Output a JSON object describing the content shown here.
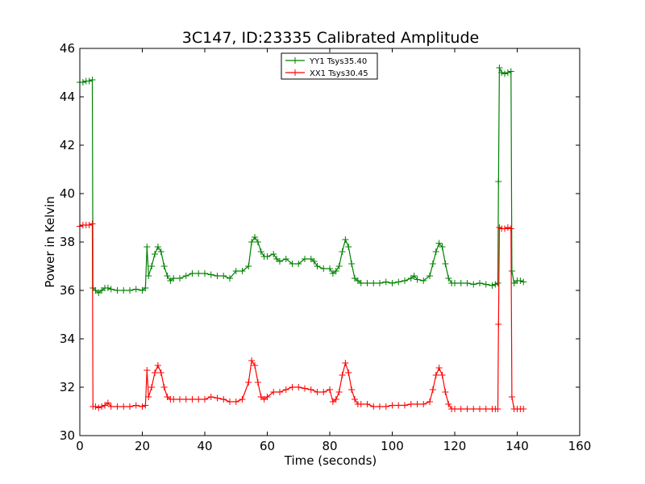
{
  "chart_data": {
    "type": "line",
    "title": "3C147, ID:23335 Calibrated Amplitude",
    "xlabel": "Time (seconds)",
    "ylabel": "Power in Kelvin",
    "xlim": [
      0,
      160
    ],
    "ylim": [
      30,
      46
    ],
    "xticks": [
      "0",
      "20",
      "40",
      "60",
      "80",
      "100",
      "120",
      "140",
      "160"
    ],
    "yticks": [
      "30",
      "32",
      "34",
      "36",
      "38",
      "40",
      "42",
      "44",
      "46"
    ],
    "grid": false,
    "legend_position": "top-center",
    "series": [
      {
        "name": "YY1 Tsys35.40",
        "color": "#008000",
        "marker": "plus",
        "points": [
          [
            0,
            44.6
          ],
          [
            1,
            44.6
          ],
          [
            2,
            44.65
          ],
          [
            3,
            44.65
          ],
          [
            4,
            44.7
          ],
          [
            4.2,
            36.1
          ],
          [
            5,
            36.0
          ],
          [
            6,
            35.9
          ],
          [
            7,
            36.0
          ],
          [
            8,
            36.1
          ],
          [
            9,
            36.1
          ],
          [
            10,
            36.05
          ],
          [
            12,
            36.0
          ],
          [
            14,
            36.0
          ],
          [
            16,
            36.0
          ],
          [
            18,
            36.05
          ],
          [
            20,
            36.0
          ],
          [
            21,
            36.1
          ],
          [
            21.5,
            37.8
          ],
          [
            22,
            36.6
          ],
          [
            23,
            37.0
          ],
          [
            24,
            37.5
          ],
          [
            25,
            37.8
          ],
          [
            26,
            37.6
          ],
          [
            27,
            37.0
          ],
          [
            28,
            36.6
          ],
          [
            29,
            36.4
          ],
          [
            30,
            36.5
          ],
          [
            32,
            36.5
          ],
          [
            34,
            36.6
          ],
          [
            36,
            36.7
          ],
          [
            38,
            36.7
          ],
          [
            40,
            36.7
          ],
          [
            42,
            36.65
          ],
          [
            44,
            36.6
          ],
          [
            46,
            36.6
          ],
          [
            48,
            36.5
          ],
          [
            50,
            36.8
          ],
          [
            52,
            36.8
          ],
          [
            54,
            37.0
          ],
          [
            55,
            38.0
          ],
          [
            56,
            38.2
          ],
          [
            57,
            38.0
          ],
          [
            58,
            37.6
          ],
          [
            59,
            37.4
          ],
          [
            60,
            37.4
          ],
          [
            62,
            37.5
          ],
          [
            63,
            37.3
          ],
          [
            64,
            37.2
          ],
          [
            66,
            37.3
          ],
          [
            68,
            37.1
          ],
          [
            70,
            37.1
          ],
          [
            72,
            37.3
          ],
          [
            74,
            37.3
          ],
          [
            75,
            37.2
          ],
          [
            76,
            37.0
          ],
          [
            78,
            36.9
          ],
          [
            80,
            36.9
          ],
          [
            81,
            36.7
          ],
          [
            82,
            36.8
          ],
          [
            83,
            37.0
          ],
          [
            84,
            37.6
          ],
          [
            85,
            38.1
          ],
          [
            86,
            37.8
          ],
          [
            87,
            37.1
          ],
          [
            88,
            36.5
          ],
          [
            89,
            36.4
          ],
          [
            90,
            36.3
          ],
          [
            92,
            36.3
          ],
          [
            94,
            36.3
          ],
          [
            96,
            36.3
          ],
          [
            98,
            36.35
          ],
          [
            100,
            36.3
          ],
          [
            102,
            36.35
          ],
          [
            104,
            36.4
          ],
          [
            106,
            36.5
          ],
          [
            107,
            36.6
          ],
          [
            108,
            36.45
          ],
          [
            110,
            36.4
          ],
          [
            112,
            36.6
          ],
          [
            113,
            37.1
          ],
          [
            114,
            37.6
          ],
          [
            115,
            37.95
          ],
          [
            116,
            37.8
          ],
          [
            117,
            37.1
          ],
          [
            118,
            36.5
          ],
          [
            119,
            36.3
          ],
          [
            120,
            36.3
          ],
          [
            122,
            36.3
          ],
          [
            124,
            36.3
          ],
          [
            126,
            36.25
          ],
          [
            128,
            36.3
          ],
          [
            130,
            36.25
          ],
          [
            132,
            36.2
          ],
          [
            133,
            36.25
          ],
          [
            133.8,
            36.3
          ],
          [
            134,
            40.5
          ],
          [
            134.3,
            45.2
          ],
          [
            135,
            45.0
          ],
          [
            136,
            44.95
          ],
          [
            137,
            45.0
          ],
          [
            138,
            45.05
          ],
          [
            138.3,
            36.8
          ],
          [
            139,
            36.3
          ],
          [
            140,
            36.4
          ],
          [
            141,
            36.4
          ],
          [
            142,
            36.35
          ]
        ]
      },
      {
        "name": "XX1 Tsys30.45",
        "color": "#ff0000",
        "marker": "plus",
        "points": [
          [
            0,
            38.65
          ],
          [
            1,
            38.7
          ],
          [
            2,
            38.7
          ],
          [
            3,
            38.7
          ],
          [
            4,
            38.75
          ],
          [
            4.2,
            31.2
          ],
          [
            5,
            31.2
          ],
          [
            6,
            31.15
          ],
          [
            7,
            31.2
          ],
          [
            8,
            31.25
          ],
          [
            9,
            31.35
          ],
          [
            10,
            31.2
          ],
          [
            12,
            31.2
          ],
          [
            14,
            31.2
          ],
          [
            16,
            31.2
          ],
          [
            18,
            31.25
          ],
          [
            20,
            31.2
          ],
          [
            21,
            31.25
          ],
          [
            21.5,
            32.7
          ],
          [
            22,
            31.6
          ],
          [
            23,
            32.0
          ],
          [
            24,
            32.6
          ],
          [
            25,
            32.9
          ],
          [
            26,
            32.6
          ],
          [
            27,
            32.0
          ],
          [
            28,
            31.6
          ],
          [
            29,
            31.5
          ],
          [
            30,
            31.5
          ],
          [
            32,
            31.5
          ],
          [
            34,
            31.5
          ],
          [
            36,
            31.5
          ],
          [
            38,
            31.5
          ],
          [
            40,
            31.5
          ],
          [
            42,
            31.6
          ],
          [
            44,
            31.55
          ],
          [
            46,
            31.5
          ],
          [
            48,
            31.4
          ],
          [
            50,
            31.4
          ],
          [
            52,
            31.5
          ],
          [
            54,
            32.2
          ],
          [
            55,
            33.1
          ],
          [
            56,
            32.9
          ],
          [
            57,
            32.2
          ],
          [
            58,
            31.6
          ],
          [
            59,
            31.5
          ],
          [
            60,
            31.6
          ],
          [
            62,
            31.8
          ],
          [
            64,
            31.8
          ],
          [
            66,
            31.9
          ],
          [
            68,
            32.0
          ],
          [
            70,
            32.0
          ],
          [
            72,
            31.95
          ],
          [
            74,
            31.9
          ],
          [
            76,
            31.8
          ],
          [
            78,
            31.8
          ],
          [
            80,
            31.9
          ],
          [
            81,
            31.4
          ],
          [
            82,
            31.5
          ],
          [
            83,
            31.8
          ],
          [
            84,
            32.5
          ],
          [
            85,
            33.0
          ],
          [
            86,
            32.6
          ],
          [
            87,
            31.9
          ],
          [
            88,
            31.5
          ],
          [
            89,
            31.3
          ],
          [
            90,
            31.3
          ],
          [
            92,
            31.3
          ],
          [
            94,
            31.2
          ],
          [
            96,
            31.2
          ],
          [
            98,
            31.2
          ],
          [
            100,
            31.25
          ],
          [
            102,
            31.25
          ],
          [
            104,
            31.25
          ],
          [
            106,
            31.3
          ],
          [
            108,
            31.3
          ],
          [
            110,
            31.3
          ],
          [
            112,
            31.4
          ],
          [
            113,
            31.9
          ],
          [
            114,
            32.5
          ],
          [
            115,
            32.8
          ],
          [
            116,
            32.5
          ],
          [
            117,
            31.8
          ],
          [
            118,
            31.3
          ],
          [
            119,
            31.1
          ],
          [
            120,
            31.1
          ],
          [
            122,
            31.1
          ],
          [
            124,
            31.1
          ],
          [
            126,
            31.1
          ],
          [
            128,
            31.1
          ],
          [
            130,
            31.1
          ],
          [
            132,
            31.1
          ],
          [
            133,
            31.1
          ],
          [
            133.8,
            31.1
          ],
          [
            134,
            34.6
          ],
          [
            134.3,
            38.6
          ],
          [
            135,
            38.55
          ],
          [
            136,
            38.55
          ],
          [
            137,
            38.6
          ],
          [
            138,
            38.55
          ],
          [
            138.3,
            31.6
          ],
          [
            139,
            31.1
          ],
          [
            140,
            31.1
          ],
          [
            141,
            31.1
          ],
          [
            142,
            31.1
          ]
        ]
      }
    ]
  }
}
